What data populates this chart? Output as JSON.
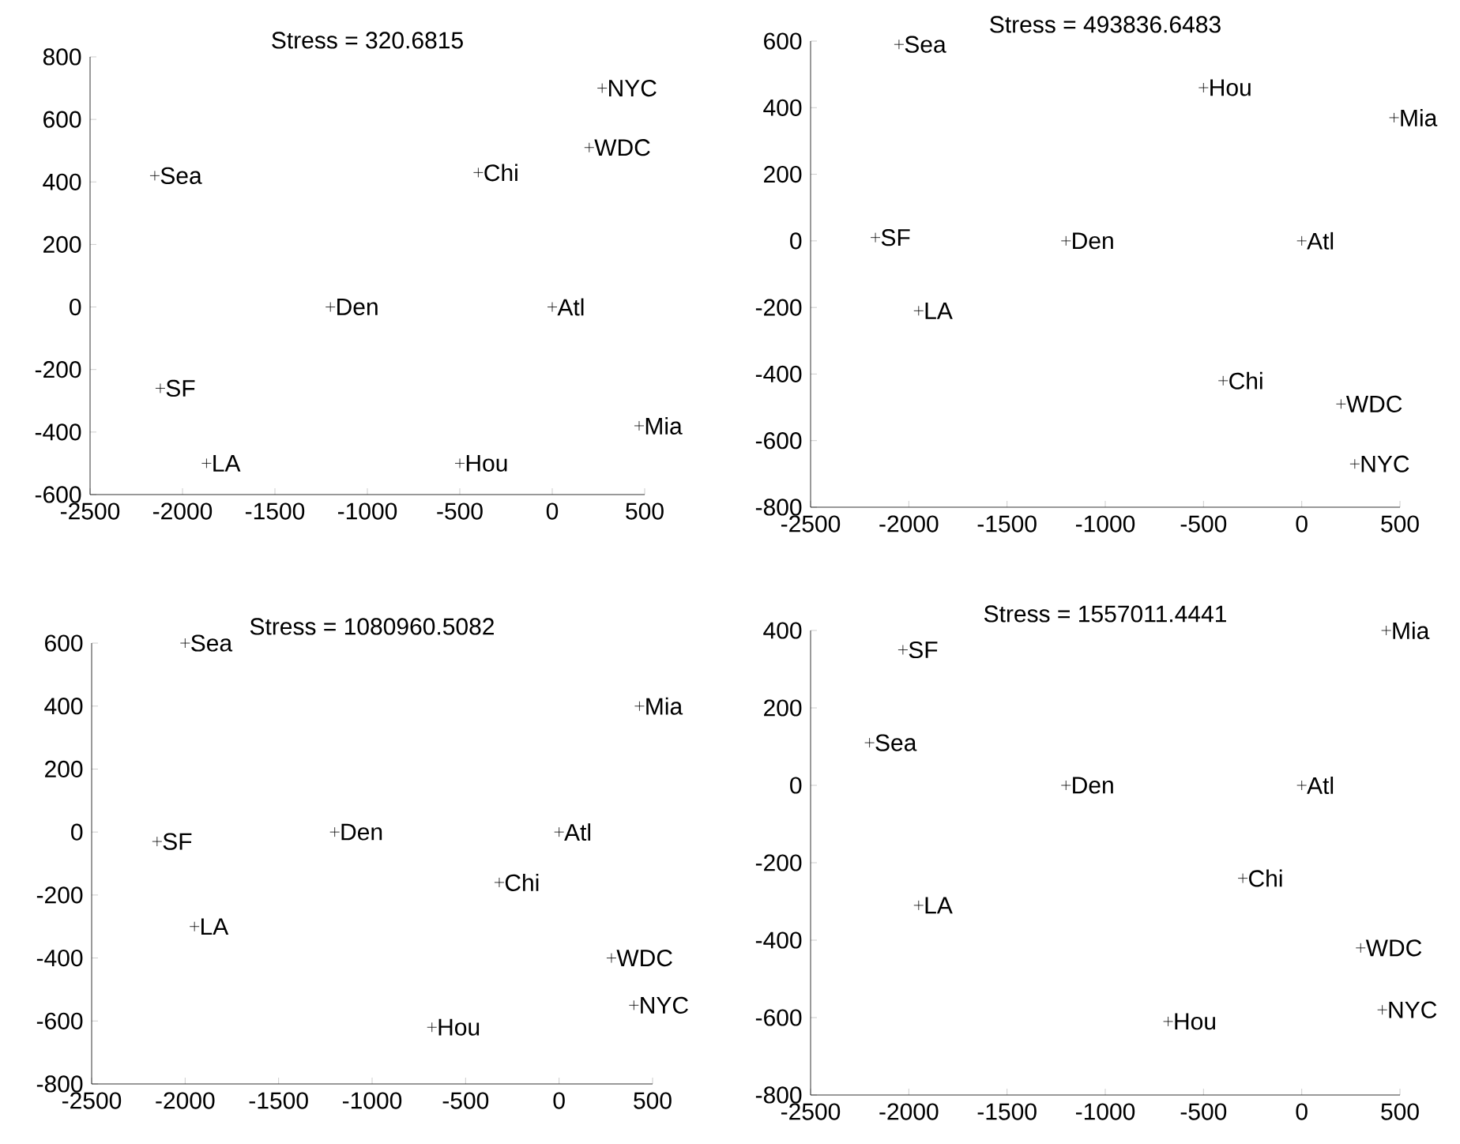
{
  "chart_data": [
    {
      "type": "scatter",
      "title": "Stress = 320.6815",
      "color": "#000000",
      "marker": "cross",
      "x": [
        270,
        200,
        -400,
        -2150,
        -1200,
        0,
        -2120,
        470,
        -1870,
        -500
      ],
      "values": [
        700,
        510,
        430,
        420,
        0,
        0,
        -260,
        -380,
        -500,
        -500
      ],
      "annotations": [
        {
          "text": "NYC",
          "x": 270,
          "y": 700
        },
        {
          "text": "WDC",
          "x": 200,
          "y": 510
        },
        {
          "text": "Chi",
          "x": -400,
          "y": 430
        },
        {
          "text": "Sea",
          "x": -2150,
          "y": 420
        },
        {
          "text": "Den",
          "x": -1200,
          "y": 0
        },
        {
          "text": "Atl",
          "x": 0,
          "y": 0
        },
        {
          "text": "SF",
          "x": -2120,
          "y": -260
        },
        {
          "text": "Mia",
          "x": 470,
          "y": -380
        },
        {
          "text": "LA",
          "x": -1870,
          "y": -500
        },
        {
          "text": "Hou",
          "x": -500,
          "y": -500
        }
      ],
      "xlim": [
        -2500,
        500
      ],
      "ylim": [
        -600,
        800
      ],
      "xticks": [
        -2500,
        -2000,
        -1500,
        -1000,
        -500,
        0,
        500
      ],
      "yticks": [
        -600,
        -400,
        -200,
        0,
        200,
        400,
        600,
        800
      ]
    },
    {
      "type": "scatter",
      "title": "Stress = 493836.6483",
      "color": "#000000",
      "marker": "cross",
      "x": [
        -2050,
        -500,
        470,
        -2170,
        -1200,
        0,
        -1950,
        -400,
        200,
        270
      ],
      "values": [
        590,
        460,
        370,
        10,
        0,
        0,
        -210,
        -420,
        -490,
        -670
      ],
      "annotations": [
        {
          "text": "Sea",
          "x": -2050,
          "y": 590
        },
        {
          "text": "Hou",
          "x": -500,
          "y": 460
        },
        {
          "text": "Mia",
          "x": 470,
          "y": 370
        },
        {
          "text": "SF",
          "x": -2170,
          "y": 10
        },
        {
          "text": "Den",
          "x": -1200,
          "y": 0
        },
        {
          "text": "Atl",
          "x": 0,
          "y": 0
        },
        {
          "text": "LA",
          "x": -1950,
          "y": -210
        },
        {
          "text": "Chi",
          "x": -400,
          "y": -420
        },
        {
          "text": "WDC",
          "x": 200,
          "y": -490
        },
        {
          "text": "NYC",
          "x": 270,
          "y": -670
        }
      ],
      "xlim": [
        -2500,
        500
      ],
      "ylim": [
        -800,
        600
      ],
      "xticks": [
        -2500,
        -2000,
        -1500,
        -1000,
        -500,
        0,
        500
      ],
      "yticks": [
        -800,
        -600,
        -400,
        -200,
        0,
        200,
        400,
        600
      ]
    },
    {
      "type": "scatter",
      "title": "Stress = 1080960.5082",
      "color": "#000000",
      "marker": "cross",
      "x": [
        -2000,
        430,
        -1200,
        0,
        -2150,
        -320,
        -1950,
        280,
        400,
        -680
      ],
      "values": [
        600,
        400,
        0,
        0,
        -30,
        -160,
        -300,
        -400,
        -550,
        -620
      ],
      "annotations": [
        {
          "text": "Sea",
          "x": -2000,
          "y": 600
        },
        {
          "text": "Mia",
          "x": 430,
          "y": 400
        },
        {
          "text": "Den",
          "x": -1200,
          "y": 0
        },
        {
          "text": "Atl",
          "x": 0,
          "y": 0
        },
        {
          "text": "SF",
          "x": -2150,
          "y": -30
        },
        {
          "text": "Chi",
          "x": -320,
          "y": -160
        },
        {
          "text": "LA",
          "x": -1950,
          "y": -300
        },
        {
          "text": "WDC",
          "x": 280,
          "y": -400
        },
        {
          "text": "NYC",
          "x": 400,
          "y": -550
        },
        {
          "text": "Hou",
          "x": -680,
          "y": -620
        }
      ],
      "xlim": [
        -2500,
        500
      ],
      "ylim": [
        -800,
        600
      ],
      "xticks": [
        -2500,
        -2000,
        -1500,
        -1000,
        -500,
        0,
        500
      ],
      "yticks": [
        -800,
        -600,
        -400,
        -200,
        0,
        200,
        400,
        600
      ]
    },
    {
      "type": "scatter",
      "title": "Stress = 1557011.4441",
      "color": "#000000",
      "marker": "cross",
      "x": [
        430,
        -2030,
        -2200,
        -1200,
        0,
        -300,
        -1950,
        300,
        410,
        -680
      ],
      "values": [
        400,
        350,
        110,
        0,
        0,
        -240,
        -310,
        -420,
        -580,
        -610
      ],
      "annotations": [
        {
          "text": "Mia",
          "x": 430,
          "y": 400
        },
        {
          "text": "SF",
          "x": -2030,
          "y": 350
        },
        {
          "text": "Sea",
          "x": -2200,
          "y": 110
        },
        {
          "text": "Den",
          "x": -1200,
          "y": 0
        },
        {
          "text": "Atl",
          "x": 0,
          "y": 0
        },
        {
          "text": "Chi",
          "x": -300,
          "y": -240
        },
        {
          "text": "LA",
          "x": -1950,
          "y": -310
        },
        {
          "text": "WDC",
          "x": 300,
          "y": -420
        },
        {
          "text": "NYC",
          "x": 410,
          "y": -580
        },
        {
          "text": "Hou",
          "x": -680,
          "y": -610
        }
      ],
      "xlim": [
        -2500,
        500
      ],
      "ylim": [
        -800,
        400
      ],
      "xticks": [
        -2500,
        -2000,
        -1500,
        -1000,
        -500,
        0,
        500
      ],
      "yticks": [
        -800,
        -600,
        -400,
        -200,
        0,
        200,
        400
      ]
    }
  ]
}
